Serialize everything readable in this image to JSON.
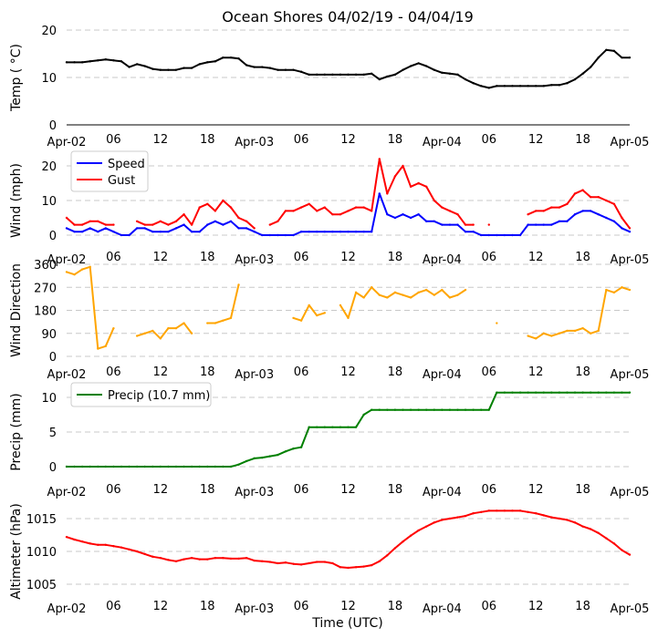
{
  "chart_data": {
    "title": "Ocean Shores 04/02/19 - 04/04/19",
    "xlabel": "Time (UTC)",
    "x_unit": "hours since Apr-02 00:00 UTC",
    "xlim": [
      0,
      72
    ],
    "x_ticks": [
      0,
      6,
      12,
      18,
      24,
      30,
      36,
      42,
      48,
      54,
      60,
      66,
      72
    ],
    "x_tick_labels": [
      "Apr-02",
      "06",
      "12",
      "18",
      "Apr-03",
      "06",
      "12",
      "18",
      "Apr-04",
      "06",
      "12",
      "18",
      "Apr-05"
    ],
    "panels": [
      {
        "type": "line",
        "ylabel": "Temp ( °C)",
        "ylim": [
          0,
          20
        ],
        "y_ticks": [
          0,
          10,
          20
        ],
        "y_tick_labels": [
          "0",
          "10",
          "20"
        ],
        "grid": true,
        "series": [
          {
            "name": "Temp",
            "color": "#000000",
            "values": [
              13.2,
              13.2,
              13.2,
              13.4,
              13.6,
              13.8,
              13.6,
              13.4,
              12.2,
              12.8,
              12.4,
              11.8,
              11.6,
              11.6,
              11.6,
              12.0,
              12.0,
              12.8,
              13.2,
              13.4,
              14.2,
              14.2,
              14.0,
              12.6,
              12.2,
              12.2,
              12.0,
              11.6,
              11.6,
              11.6,
              11.2,
              10.6,
              10.6,
              10.6,
              10.6,
              10.6,
              10.6,
              10.6,
              10.6,
              10.8,
              9.6,
              10.2,
              10.6,
              11.6,
              12.4,
              13.0,
              12.4,
              11.6,
              11.0,
              10.8,
              10.6,
              9.6,
              8.8,
              8.2,
              7.8,
              8.2,
              8.2,
              8.2,
              8.2,
              8.2,
              8.2,
              8.2,
              8.4,
              8.4,
              8.8,
              9.6,
              10.8,
              12.2,
              14.2,
              15.8,
              15.6,
              14.2,
              14.2
            ]
          }
        ]
      },
      {
        "type": "line",
        "ylabel": "Wind (mph)",
        "ylim": [
          0,
          20
        ],
        "y_ticks": [
          0,
          10,
          20
        ],
        "y_tick_labels": [
          "0",
          "10",
          "20"
        ],
        "grid": true,
        "legend": "top-left",
        "series": [
          {
            "name": "Speed",
            "color": "#0000ff",
            "values": [
              2,
              1,
              1,
              2,
              1,
              2,
              1,
              0,
              0,
              2,
              2,
              1,
              1,
              1,
              2,
              3,
              1,
              1,
              3,
              4,
              3,
              4,
              2,
              2,
              1,
              0,
              0,
              0,
              0,
              0,
              1,
              1,
              1,
              1,
              1,
              1,
              1,
              1,
              1,
              1,
              12,
              6,
              5,
              6,
              5,
              6,
              4,
              4,
              3,
              3,
              3,
              1,
              1,
              0,
              0,
              0,
              0,
              0,
              0,
              3,
              3,
              3,
              3,
              4,
              4,
              6,
              7,
              7,
              6,
              5,
              4,
              2,
              1
            ]
          },
          {
            "name": "Gust",
            "color": "#ff0000",
            "values": [
              5,
              3,
              3,
              4,
              4,
              3,
              3,
              null,
              null,
              4,
              3,
              3,
              4,
              3,
              4,
              6,
              3,
              8,
              9,
              7,
              10,
              8,
              5,
              4,
              2,
              null,
              3,
              4,
              7,
              7,
              8,
              9,
              7,
              8,
              6,
              6,
              7,
              8,
              8,
              7,
              22,
              12,
              17,
              20,
              14,
              15,
              14,
              10,
              8,
              7,
              6,
              3,
              3,
              null,
              3,
              null,
              null,
              null,
              null,
              6,
              7,
              7,
              8,
              8,
              9,
              12,
              13,
              11,
              11,
              10,
              9,
              5,
              2
            ]
          }
        ]
      },
      {
        "type": "line",
        "ylabel": "Wind Direction",
        "ylim": [
          0,
          360
        ],
        "y_ticks": [
          0,
          90,
          180,
          270,
          360
        ],
        "y_tick_labels": [
          "0",
          "90",
          "180",
          "270",
          "360"
        ],
        "grid": true,
        "series": [
          {
            "name": "Direction",
            "color": "#ffa500",
            "values": [
              330,
              320,
              340,
              350,
              30,
              40,
              110,
              null,
              null,
              80,
              90,
              100,
              70,
              110,
              110,
              130,
              90,
              null,
              130,
              130,
              140,
              150,
              280,
              null,
              null,
              null,
              null,
              null,
              null,
              150,
              140,
              200,
              160,
              170,
              null,
              200,
              150,
              250,
              230,
              270,
              240,
              230,
              250,
              240,
              230,
              250,
              260,
              240,
              260,
              230,
              240,
              260,
              null,
              null,
              null,
              130,
              null,
              null,
              null,
              80,
              70,
              90,
              80,
              90,
              100,
              100,
              110,
              90,
              100,
              260,
              250,
              270,
              260
            ]
          }
        ]
      },
      {
        "type": "line",
        "ylabel": "Precip (mm)",
        "ylim": [
          0,
          10
        ],
        "y_ticks": [
          0,
          5,
          10
        ],
        "y_tick_labels": [
          "0",
          "5",
          "10"
        ],
        "grid": true,
        "legend": "top-left",
        "series": [
          {
            "name": "Precip (10.7 mm)",
            "color": "#008000",
            "values": [
              0,
              0,
              0,
              0,
              0,
              0,
              0,
              0,
              0,
              0,
              0,
              0,
              0,
              0,
              0,
              0,
              0,
              0,
              0,
              0,
              0,
              0,
              0.3,
              0.8,
              1.2,
              1.3,
              1.5,
              1.7,
              2.2,
              2.6,
              2.8,
              5.7,
              5.7,
              5.7,
              5.7,
              5.7,
              5.7,
              5.7,
              7.5,
              8.2,
              8.2,
              8.2,
              8.2,
              8.2,
              8.2,
              8.2,
              8.2,
              8.2,
              8.2,
              8.2,
              8.2,
              8.2,
              8.2,
              8.2,
              8.2,
              10.7,
              10.7,
              10.7,
              10.7,
              10.7,
              10.7,
              10.7,
              10.7,
              10.7,
              10.7,
              10.7,
              10.7,
              10.7,
              10.7,
              10.7,
              10.7,
              10.7,
              10.7
            ]
          }
        ]
      },
      {
        "type": "line",
        "ylabel": "Altimeter (hPa)",
        "ylim": [
          1005,
          1015
        ],
        "y_ticks": [
          1005,
          1010,
          1015
        ],
        "y_tick_labels": [
          "1005",
          "1010",
          "1015"
        ],
        "grid": true,
        "series": [
          {
            "name": "Altimeter",
            "color": "#ff0000",
            "values": [
              1012.2,
              1011.8,
              1011.5,
              1011.2,
              1011.0,
              1011.0,
              1010.8,
              1010.6,
              1010.3,
              1010.0,
              1009.6,
              1009.2,
              1009.0,
              1008.7,
              1008.5,
              1008.8,
              1009.0,
              1008.8,
              1008.8,
              1009.0,
              1009.0,
              1008.9,
              1008.9,
              1009.0,
              1008.6,
              1008.5,
              1008.4,
              1008.2,
              1008.3,
              1008.1,
              1008.0,
              1008.2,
              1008.4,
              1008.4,
              1008.2,
              1007.6,
              1007.5,
              1007.6,
              1007.7,
              1007.9,
              1008.5,
              1009.4,
              1010.5,
              1011.5,
              1012.4,
              1013.2,
              1013.8,
              1014.4,
              1014.8,
              1015.0,
              1015.2,
              1015.4,
              1015.8,
              1016.0,
              1016.2,
              1016.2,
              1016.2,
              1016.2,
              1016.2,
              1016.0,
              1015.8,
              1015.5,
              1015.2,
              1015.0,
              1014.8,
              1014.4,
              1013.8,
              1013.4,
              1012.8,
              1012.0,
              1011.2,
              1010.2,
              1009.5
            ]
          }
        ]
      }
    ]
  }
}
